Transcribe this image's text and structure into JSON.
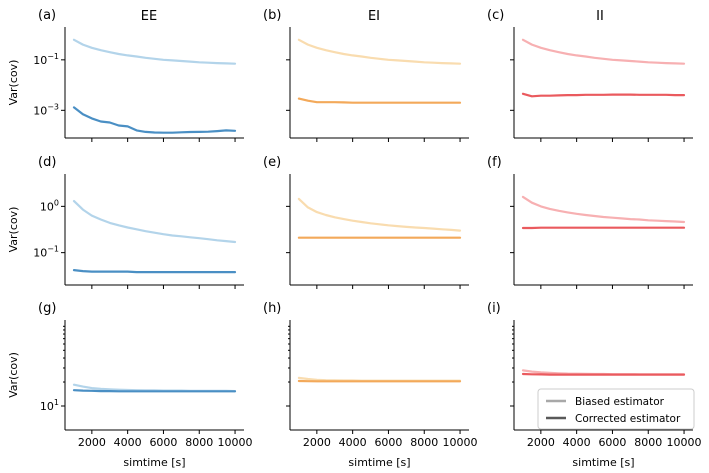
{
  "figure": {
    "column_titles": [
      "EE",
      "EI",
      "II"
    ],
    "colors": {
      "EE": {
        "biased": "#b3d4ea",
        "corrected": "#4a8fc4"
      },
      "EI": {
        "biased": "#f9dcaf",
        "corrected": "#f3a95a"
      },
      "II": {
        "biased": "#f7b0b2",
        "corrected": "#ea5a5e"
      },
      "legend": {
        "biased": "#a8a8a8",
        "corrected": "#595959"
      }
    },
    "legend": {
      "biased_label": "Biased estimator",
      "corrected_label": "Corrected estimator"
    }
  },
  "chart_data": [
    {
      "type": "line",
      "panel": "(a)",
      "column": "EE",
      "ylabel": "Var(cov)",
      "xlabel": "",
      "yscale": "log",
      "ylim": [
        8e-05,
        2.0
      ],
      "xlim": [
        500,
        10500
      ],
      "yticks": [
        {
          "v": 0.1,
          "label": "10^-1"
        },
        {
          "v": 0.001,
          "label": "10^-3"
        }
      ],
      "xticks": [
        2000,
        4000,
        6000,
        8000,
        10000
      ],
      "show_xticklabels": false,
      "x": [
        1000,
        1500,
        2000,
        2500,
        3000,
        3500,
        4000,
        4500,
        5000,
        5500,
        6000,
        6500,
        7000,
        7500,
        8000,
        8500,
        9000,
        9500,
        10000
      ],
      "series": [
        {
          "name": "Biased estimator",
          "values": [
            0.62,
            0.4,
            0.3,
            0.24,
            0.2,
            0.17,
            0.15,
            0.135,
            0.12,
            0.11,
            0.1,
            0.095,
            0.09,
            0.085,
            0.08,
            0.077,
            0.074,
            0.072,
            0.07
          ]
        },
        {
          "name": "Corrected estimator",
          "values": [
            0.0013,
            0.0007,
            0.00048,
            0.00036,
            0.00033,
            0.00025,
            0.00023,
            0.00016,
            0.00014,
            0.000132,
            0.00013,
            0.00013,
            0.000135,
            0.000138,
            0.00014,
            0.000142,
            0.00015,
            0.00016,
            0.000155
          ]
        }
      ]
    },
    {
      "type": "line",
      "panel": "(b)",
      "column": "EI",
      "ylabel": "",
      "xlabel": "",
      "yscale": "log",
      "ylim": [
        8e-05,
        2.0
      ],
      "xlim": [
        500,
        10500
      ],
      "yticks": [
        {
          "v": 0.1,
          "label": ""
        },
        {
          "v": 0.001,
          "label": ""
        }
      ],
      "xticks": [
        2000,
        4000,
        6000,
        8000,
        10000
      ],
      "show_xticklabels": false,
      "x": [
        1000,
        1500,
        2000,
        2500,
        3000,
        3500,
        4000,
        4500,
        5000,
        5500,
        6000,
        6500,
        7000,
        7500,
        8000,
        8500,
        9000,
        9500,
        10000
      ],
      "series": [
        {
          "name": "Biased estimator",
          "values": [
            0.62,
            0.4,
            0.3,
            0.24,
            0.2,
            0.17,
            0.15,
            0.135,
            0.12,
            0.11,
            0.1,
            0.095,
            0.09,
            0.085,
            0.08,
            0.077,
            0.074,
            0.072,
            0.07
          ]
        },
        {
          "name": "Corrected estimator",
          "values": [
            0.0029,
            0.0024,
            0.0021,
            0.0021,
            0.0021,
            0.00205,
            0.002,
            0.002,
            0.002,
            0.002,
            0.002,
            0.002,
            0.002,
            0.002,
            0.002,
            0.002,
            0.002,
            0.002,
            0.002
          ]
        }
      ]
    },
    {
      "type": "line",
      "panel": "(c)",
      "column": "II",
      "ylabel": "",
      "xlabel": "",
      "yscale": "log",
      "ylim": [
        8e-05,
        2.0
      ],
      "xlim": [
        500,
        10500
      ],
      "yticks": [
        {
          "v": 0.1,
          "label": ""
        },
        {
          "v": 0.001,
          "label": ""
        }
      ],
      "xticks": [
        2000,
        4000,
        6000,
        8000,
        10000
      ],
      "show_xticklabels": false,
      "x": [
        1000,
        1500,
        2000,
        2500,
        3000,
        3500,
        4000,
        4500,
        5000,
        5500,
        6000,
        6500,
        7000,
        7500,
        8000,
        8500,
        9000,
        9500,
        10000
      ],
      "series": [
        {
          "name": "Biased estimator",
          "values": [
            0.62,
            0.4,
            0.3,
            0.24,
            0.2,
            0.17,
            0.15,
            0.135,
            0.12,
            0.11,
            0.1,
            0.095,
            0.09,
            0.085,
            0.08,
            0.077,
            0.074,
            0.072,
            0.07
          ]
        },
        {
          "name": "Corrected estimator",
          "values": [
            0.0045,
            0.0036,
            0.0038,
            0.0038,
            0.0039,
            0.004,
            0.004,
            0.0041,
            0.0041,
            0.0041,
            0.0042,
            0.0042,
            0.0042,
            0.0041,
            0.0041,
            0.0041,
            0.0041,
            0.004,
            0.004
          ]
        }
      ]
    },
    {
      "type": "line",
      "panel": "(d)",
      "column": "EE",
      "ylabel": "Var(cov)",
      "xlabel": "",
      "yscale": "log",
      "ylim": [
        0.02,
        5.0
      ],
      "xlim": [
        500,
        10500
      ],
      "yticks": [
        {
          "v": 1,
          "label": "10^0"
        },
        {
          "v": 0.1,
          "label": "10^-1"
        }
      ],
      "xticks": [
        2000,
        4000,
        6000,
        8000,
        10000
      ],
      "show_xticklabels": false,
      "x": [
        1000,
        1500,
        2000,
        2500,
        3000,
        3500,
        4000,
        4500,
        5000,
        5500,
        6000,
        6500,
        7000,
        7500,
        8000,
        8500,
        9000,
        9500,
        10000
      ],
      "series": [
        {
          "name": "Biased estimator",
          "values": [
            1.3,
            0.85,
            0.63,
            0.52,
            0.44,
            0.39,
            0.35,
            0.32,
            0.29,
            0.27,
            0.25,
            0.235,
            0.225,
            0.215,
            0.205,
            0.195,
            0.185,
            0.178,
            0.17
          ]
        },
        {
          "name": "Corrected estimator",
          "values": [
            0.042,
            0.04,
            0.039,
            0.039,
            0.039,
            0.039,
            0.039,
            0.038,
            0.038,
            0.038,
            0.038,
            0.038,
            0.038,
            0.038,
            0.038,
            0.038,
            0.038,
            0.038,
            0.038
          ]
        }
      ]
    },
    {
      "type": "line",
      "panel": "(e)",
      "column": "EI",
      "ylabel": "",
      "xlabel": "",
      "yscale": "log",
      "ylim": [
        0.02,
        5.0
      ],
      "xlim": [
        500,
        10500
      ],
      "yticks": [
        {
          "v": 1,
          "label": ""
        },
        {
          "v": 0.1,
          "label": ""
        }
      ],
      "xticks": [
        2000,
        4000,
        6000,
        8000,
        10000
      ],
      "show_xticklabels": false,
      "x": [
        1000,
        1500,
        2000,
        2500,
        3000,
        3500,
        4000,
        4500,
        5000,
        5500,
        6000,
        6500,
        7000,
        7500,
        8000,
        8500,
        9000,
        9500,
        10000
      ],
      "series": [
        {
          "name": "Biased estimator",
          "values": [
            1.45,
            0.95,
            0.75,
            0.65,
            0.58,
            0.53,
            0.49,
            0.46,
            0.43,
            0.41,
            0.39,
            0.375,
            0.36,
            0.35,
            0.34,
            0.33,
            0.32,
            0.31,
            0.3
          ]
        },
        {
          "name": "Corrected estimator",
          "values": [
            0.21,
            0.21,
            0.21,
            0.21,
            0.21,
            0.21,
            0.21,
            0.21,
            0.21,
            0.21,
            0.21,
            0.21,
            0.21,
            0.21,
            0.21,
            0.21,
            0.21,
            0.21,
            0.21
          ]
        }
      ]
    },
    {
      "type": "line",
      "panel": "(f)",
      "column": "II",
      "ylabel": "",
      "xlabel": "",
      "yscale": "log",
      "ylim": [
        0.02,
        5.0
      ],
      "xlim": [
        500,
        10500
      ],
      "yticks": [
        {
          "v": 1,
          "label": ""
        },
        {
          "v": 0.1,
          "label": ""
        }
      ],
      "xticks": [
        2000,
        4000,
        6000,
        8000,
        10000
      ],
      "show_xticklabels": false,
      "x": [
        1000,
        1500,
        2000,
        2500,
        3000,
        3500,
        4000,
        4500,
        5000,
        5500,
        6000,
        6500,
        7000,
        7500,
        8000,
        8500,
        9000,
        9500,
        10000
      ],
      "series": [
        {
          "name": "Biased estimator",
          "values": [
            1.6,
            1.2,
            1.0,
            0.88,
            0.8,
            0.74,
            0.69,
            0.65,
            0.62,
            0.59,
            0.57,
            0.55,
            0.53,
            0.52,
            0.5,
            0.49,
            0.48,
            0.47,
            0.46
          ]
        },
        {
          "name": "Corrected estimator",
          "values": [
            0.34,
            0.34,
            0.345,
            0.345,
            0.345,
            0.345,
            0.345,
            0.345,
            0.345,
            0.345,
            0.345,
            0.345,
            0.345,
            0.345,
            0.345,
            0.345,
            0.345,
            0.345,
            0.345
          ]
        }
      ]
    },
    {
      "type": "line",
      "panel": "(g)",
      "column": "EE",
      "ylabel": "Var(cov)",
      "xlabel": "simtime [s]",
      "yscale": "log",
      "ylim": [
        5,
        120
      ],
      "xlim": [
        500,
        10500
      ],
      "yticks": [
        {
          "v": 10,
          "label": "10^1"
        }
      ],
      "minor_yticks": [
        20,
        30,
        40,
        50,
        60,
        70,
        80,
        90,
        100
      ],
      "xticks": [
        2000,
        4000,
        6000,
        8000,
        10000
      ],
      "show_xticklabels": true,
      "x": [
        1000,
        1500,
        2000,
        2500,
        3000,
        3500,
        4000,
        4500,
        5000,
        5500,
        6000,
        6500,
        7000,
        7500,
        8000,
        8500,
        9000,
        9500,
        10000
      ],
      "series": [
        {
          "name": "Biased estimator",
          "values": [
            18.5,
            17.5,
            16.8,
            16.4,
            16.2,
            16.0,
            15.9,
            15.8,
            15.7,
            15.7,
            15.6,
            15.6,
            15.6,
            15.5,
            15.5,
            15.5,
            15.5,
            15.5,
            15.4
          ]
        },
        {
          "name": "Corrected estimator",
          "values": [
            15.8,
            15.6,
            15.5,
            15.4,
            15.4,
            15.3,
            15.3,
            15.3,
            15.3,
            15.3,
            15.3,
            15.3,
            15.3,
            15.3,
            15.3,
            15.3,
            15.3,
            15.3,
            15.3
          ]
        }
      ]
    },
    {
      "type": "line",
      "panel": "(h)",
      "column": "EI",
      "ylabel": "",
      "xlabel": "simtime [s]",
      "yscale": "log",
      "ylim": [
        5,
        120
      ],
      "xlim": [
        500,
        10500
      ],
      "yticks": [
        {
          "v": 10,
          "label": ""
        }
      ],
      "minor_yticks": [
        20,
        30,
        40,
        50,
        60,
        70,
        80,
        90,
        100
      ],
      "xticks": [
        2000,
        4000,
        6000,
        8000,
        10000
      ],
      "show_xticklabels": true,
      "x": [
        1000,
        1500,
        2000,
        2500,
        3000,
        3500,
        4000,
        4500,
        5000,
        5500,
        6000,
        6500,
        7000,
        7500,
        8000,
        8500,
        9000,
        9500,
        10000
      ],
      "series": [
        {
          "name": "Biased estimator",
          "values": [
            22.5,
            21.8,
            21.3,
            21.1,
            21.0,
            20.9,
            20.9,
            20.8,
            20.8,
            20.8,
            20.8,
            20.8,
            20.8,
            20.8,
            20.8,
            20.8,
            20.8,
            20.8,
            20.8
          ]
        },
        {
          "name": "Corrected estimator",
          "values": [
            20.6,
            20.5,
            20.4,
            20.4,
            20.4,
            20.4,
            20.4,
            20.4,
            20.4,
            20.4,
            20.4,
            20.4,
            20.4,
            20.4,
            20.4,
            20.4,
            20.4,
            20.4,
            20.4
          ]
        }
      ]
    },
    {
      "type": "line",
      "panel": "(i)",
      "column": "II",
      "ylabel": "",
      "xlabel": "simtime [s]",
      "yscale": "log",
      "ylim": [
        5,
        120
      ],
      "xlim": [
        500,
        10500
      ],
      "yticks": [
        {
          "v": 10,
          "label": ""
        }
      ],
      "minor_yticks": [
        20,
        30,
        40,
        50,
        60,
        70,
        80,
        90,
        100
      ],
      "xticks": [
        2000,
        4000,
        6000,
        8000,
        10000
      ],
      "show_xticklabels": true,
      "x": [
        1000,
        1500,
        2000,
        2500,
        3000,
        3500,
        4000,
        4500,
        5000,
        5500,
        6000,
        6500,
        7000,
        7500,
        8000,
        8500,
        9000,
        9500,
        10000
      ],
      "series": [
        {
          "name": "Biased estimator",
          "values": [
            28.0,
            27.0,
            26.4,
            26.0,
            25.7,
            25.5,
            25.4,
            25.3,
            25.2,
            25.2,
            25.1,
            25.1,
            25.1,
            25.0,
            25.0,
            25.0,
            25.0,
            25.0,
            25.0
          ]
        },
        {
          "name": "Corrected estimator",
          "values": [
            25.2,
            25.0,
            24.9,
            24.8,
            24.8,
            24.8,
            24.8,
            24.8,
            24.8,
            24.8,
            24.8,
            24.8,
            24.8,
            24.8,
            24.8,
            24.8,
            24.8,
            24.8,
            24.8
          ]
        }
      ]
    }
  ]
}
